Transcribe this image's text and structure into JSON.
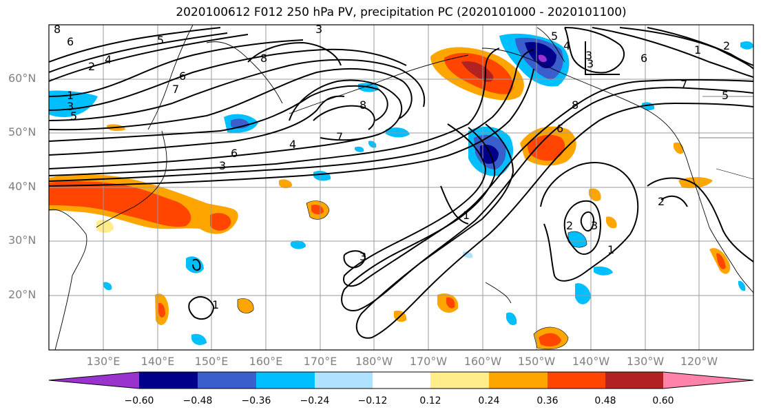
{
  "title": "2020100612 F012 250 hPa PV, precipitation PC (2020101000 - 2020101100)",
  "latitude_labels": [
    "60°N",
    "50°N",
    "40°N",
    "30°N",
    "20°N"
  ],
  "longitude_labels": [
    "130°E",
    "140°E",
    "150°E",
    "160°E",
    "170°E",
    "180°W",
    "170°W",
    "160°W",
    "150°W",
    "140°W",
    "130°W",
    "120°W"
  ],
  "colorbar": {
    "tick_labels": [
      "−0.60",
      "−0.48",
      "−0.36",
      "−0.24",
      "−0.12",
      "0.12",
      "0.24",
      "0.36",
      "0.48",
      "0.60"
    ],
    "colors": [
      "#9a32cd",
      "#00008b",
      "#3a5fcd",
      "#00bfff",
      "#b0e2ff",
      "#ffffff",
      "#ffec8b",
      "#ffa500",
      "#ff4500",
      "#b22222",
      "#ff82ab"
    ]
  },
  "contour_labels": [
    "8",
    "6",
    "5",
    "4",
    "2",
    "1",
    "3",
    "5",
    "6",
    "7",
    "4",
    "3",
    "8",
    "7",
    "6",
    "3",
    "8",
    "5",
    "4",
    "3",
    "6",
    "2",
    "7",
    "5",
    "1",
    "3",
    "2",
    "3",
    "1",
    "8",
    "6",
    "1",
    "2",
    "3",
    "1"
  ],
  "shading_colors": {
    "strong_negative": "#00008b",
    "negative": "#3a5fcd",
    "weak_negative": "#00bfff",
    "very_weak_negative": "#b0e2ff",
    "weak_positive": "#ffec8b",
    "positive": "#ffa500",
    "strong_positive": "#ff4500",
    "very_strong_positive": "#b22222",
    "extreme_negative": "#9a32cd"
  }
}
